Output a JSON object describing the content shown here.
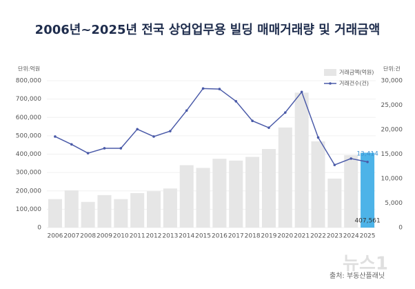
{
  "chart_data": {
    "type": "combo",
    "title": "2006년~2025년 전국 상업업무용 빌딩 매매거래량 및 거래금액",
    "y_unit": "단위:억원",
    "y2_unit": "단위:건",
    "source": "출처: 부동산플래닛",
    "watermark": "뉴스1",
    "categories": [
      "2006",
      "2007",
      "2008",
      "2009",
      "2010",
      "2011",
      "2012",
      "2013",
      "2014",
      "2015",
      "2016",
      "2017",
      "2018",
      "2019",
      "2020",
      "2021",
      "2022",
      "2023",
      "2024",
      "2025"
    ],
    "series": [
      {
        "name": "거래금액(억원)",
        "type": "bar",
        "color": "#e6e6e6",
        "colors": [
          "#e6e6e6",
          "#e6e6e6",
          "#e6e6e6",
          "#e6e6e6",
          "#e6e6e6",
          "#e6e6e6",
          "#e6e6e6",
          "#e6e6e6",
          "#e6e6e6",
          "#e6e6e6",
          "#e6e6e6",
          "#e6e6e6",
          "#e6e6e6",
          "#e6e6e6",
          "#e6e6e6",
          "#e6e6e6",
          "#e6e6e6",
          "#e6e6e6",
          "#e6e6e6",
          "#4db3e8"
        ],
        "values": [
          155000,
          203000,
          140000,
          177000,
          155000,
          188000,
          198000,
          213000,
          340000,
          325000,
          375000,
          365000,
          385000,
          428000,
          545000,
          735000,
          470000,
          267000,
          395000,
          407561
        ],
        "value_labels": [
          null,
          null,
          null,
          null,
          null,
          null,
          null,
          null,
          null,
          null,
          null,
          null,
          null,
          null,
          null,
          null,
          null,
          null,
          null,
          "407,561"
        ]
      },
      {
        "name": "거래건수(건)",
        "type": "line",
        "color": "#4a5aa8",
        "axis": "y2",
        "values": [
          18600,
          17000,
          15200,
          16200,
          16200,
          20100,
          18600,
          19700,
          23900,
          28400,
          28300,
          25800,
          21800,
          20400,
          23500,
          27700,
          18400,
          12800,
          14100,
          13414
        ],
        "value_labels": [
          null,
          null,
          null,
          null,
          null,
          null,
          null,
          null,
          null,
          null,
          null,
          null,
          null,
          null,
          null,
          null,
          null,
          null,
          null,
          "13,414"
        ],
        "label_color": "#3a8fd0"
      }
    ],
    "ylim": [
      0,
      800000
    ],
    "yticks": [
      0,
      {
        "value": 100000,
        "label": "100,000"
      },
      {
        "value": 200000,
        "label": "200,000"
      },
      {
        "value": 300000,
        "label": "300,000"
      },
      {
        "value": 400000,
        "label": "400,000"
      },
      {
        "value": 500000,
        "label": "500,000"
      },
      {
        "value": 600000,
        "label": "600,000"
      },
      {
        "value": 700000,
        "label": "700,000"
      },
      {
        "value": 800000,
        "label": "800,000"
      }
    ],
    "y2lim": [
      0,
      30000
    ],
    "y2ticks": [
      0,
      {
        "value": 5000,
        "label": "5,000"
      },
      {
        "value": 10000,
        "label": "10,000"
      },
      {
        "value": 15000,
        "label": "15,000"
      },
      {
        "value": 20000,
        "label": "20,000"
      },
      {
        "value": 25000,
        "label": "25,000"
      },
      {
        "value": 30000,
        "label": "30,000"
      }
    ],
    "grid": true
  }
}
